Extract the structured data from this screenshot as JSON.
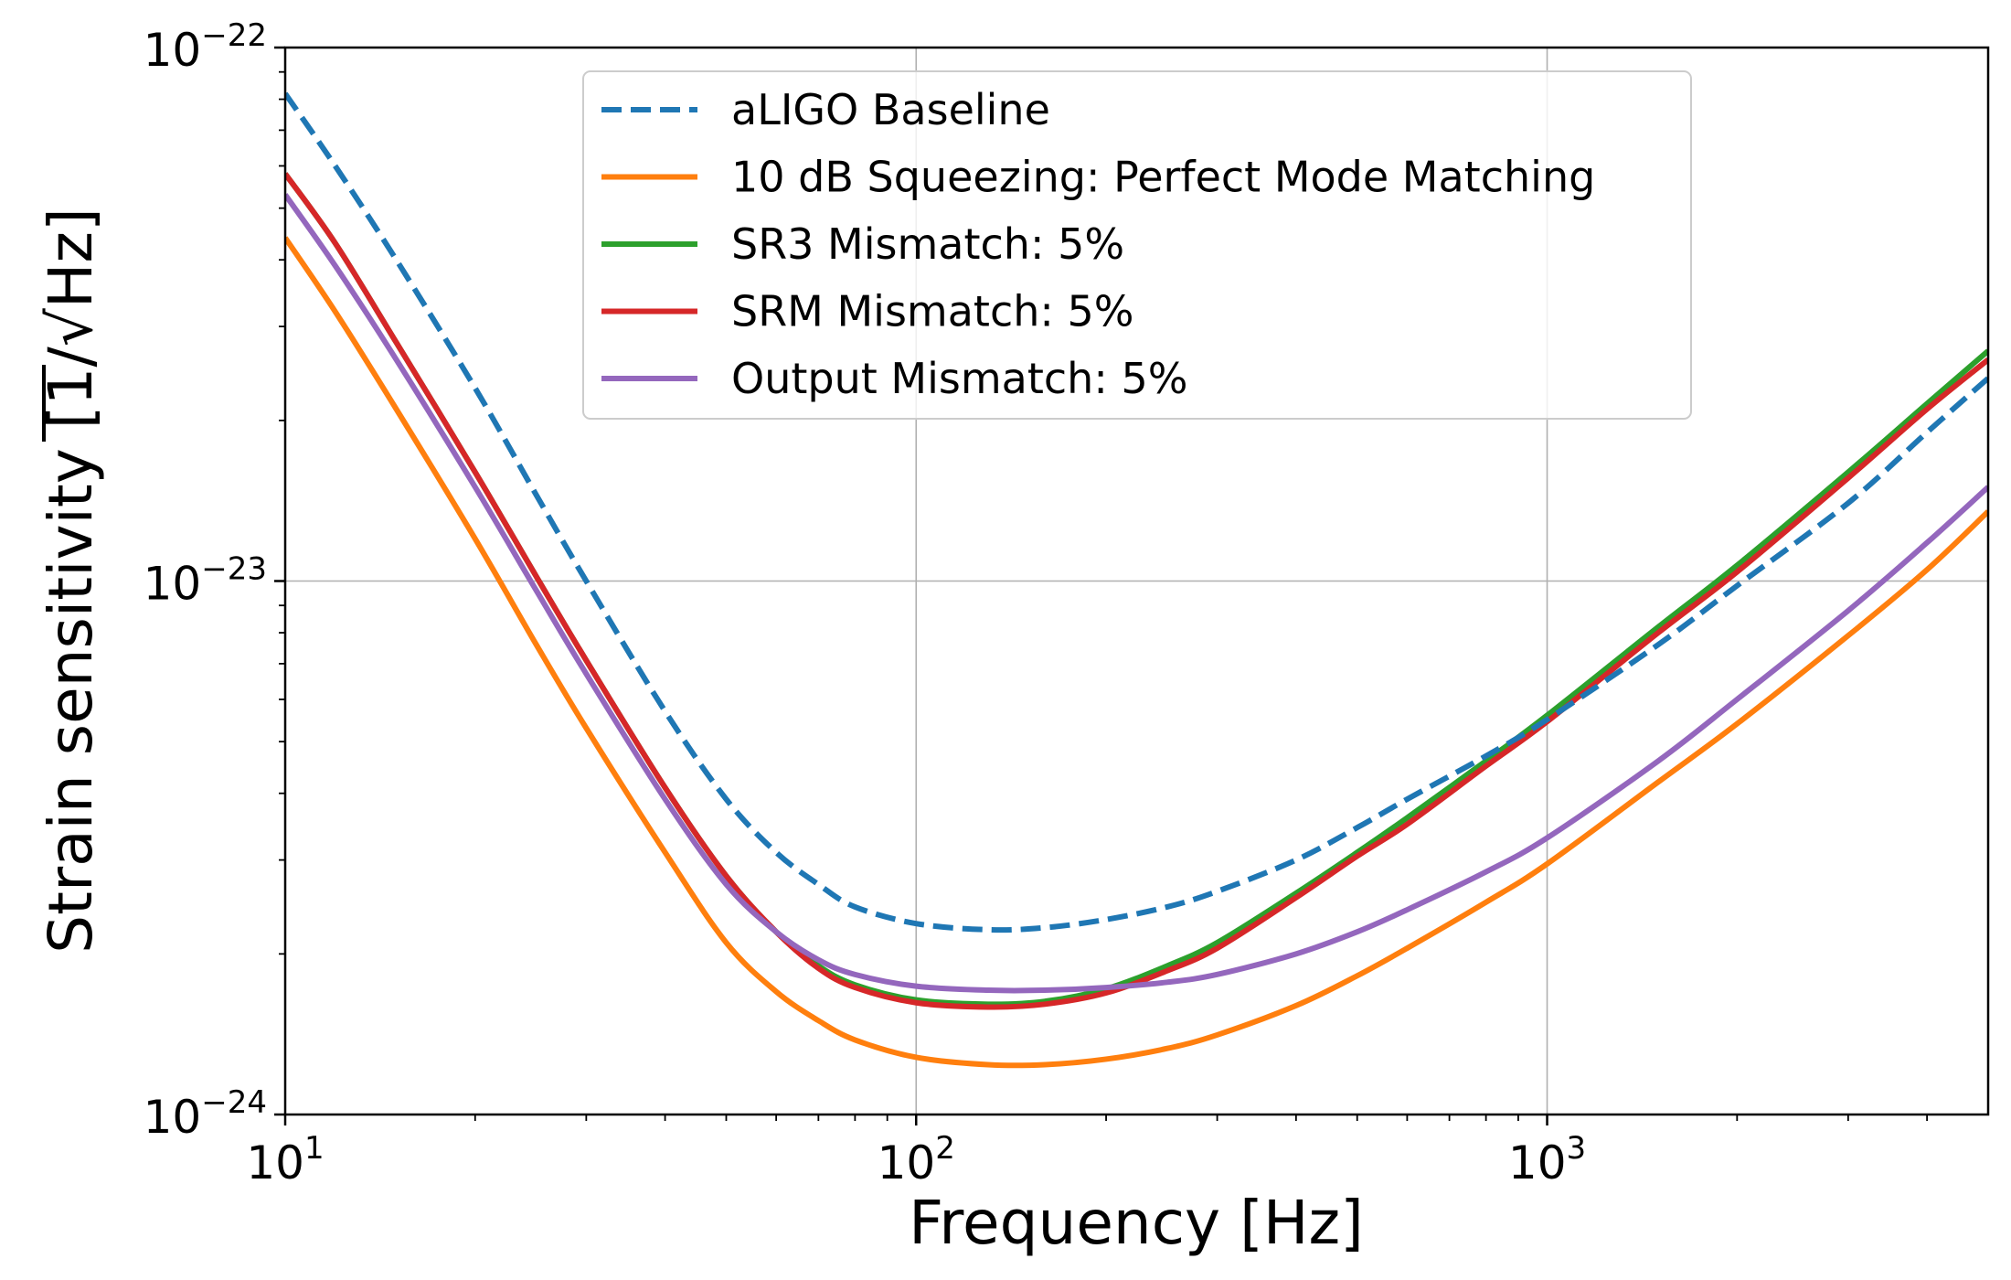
{
  "chart_data": {
    "type": "line",
    "xlabel": "Frequency [Hz]",
    "ylabel": "Strain sensitivity [1/√Hz]",
    "ylabel_parts": {
      "before": "Strain sensitivity [1/",
      "sqrt_sign": "√",
      "radicand": "Hz",
      "after": "]"
    },
    "xscale": "log",
    "yscale": "log",
    "xlim": [
      10,
      5000
    ],
    "ylim": [
      1e-24,
      1e-22
    ],
    "grid": true,
    "legend_position": "upper-center",
    "x_ticks": [
      {
        "value": 10,
        "base": "10",
        "exp": "1"
      },
      {
        "value": 100,
        "base": "10",
        "exp": "2"
      },
      {
        "value": 1000,
        "base": "10",
        "exp": "3"
      }
    ],
    "y_ticks": [
      {
        "value": 1e-24,
        "base": "10",
        "exp": "−24"
      },
      {
        "value": 1e-23,
        "base": "10",
        "exp": "−23"
      },
      {
        "value": 1e-22,
        "base": "10",
        "exp": "−22"
      }
    ],
    "series": [
      {
        "name": "aLIGO Baseline",
        "color": "#1f77b4",
        "dash": "dashed",
        "x": [
          10,
          12,
          15,
          20,
          25,
          30,
          40,
          50,
          60,
          70,
          80,
          100,
          130,
          160,
          200,
          250,
          300,
          400,
          500,
          600,
          800,
          1000,
          1500,
          2000,
          3000,
          4000,
          5000
        ],
        "y": [
          8.2e-23,
          6e-23,
          4e-23,
          2.3e-23,
          1.45e-23,
          1e-23,
          5.7e-24,
          3.9e-24,
          3.1e-24,
          2.7e-24,
          2.45e-24,
          2.28e-24,
          2.22e-24,
          2.24e-24,
          2.32e-24,
          2.45e-24,
          2.62e-24,
          3e-24,
          3.45e-24,
          3.9e-24,
          4.7e-24,
          5.5e-24,
          7.6e-24,
          9.8e-24,
          1.4e-23,
          1.9e-23,
          2.4e-23
        ]
      },
      {
        "name": "10 dB Squeezing: Perfect Mode Matching",
        "color": "#ff7f0e",
        "dash": "solid",
        "x": [
          10,
          12,
          15,
          20,
          25,
          30,
          40,
          50,
          60,
          70,
          80,
          100,
          130,
          160,
          200,
          250,
          300,
          400,
          500,
          600,
          800,
          1000,
          1500,
          2000,
          3000,
          4000,
          5000
        ],
        "y": [
          4.4e-23,
          3.2e-23,
          2.1e-23,
          1.2e-23,
          7.6e-24,
          5.3e-24,
          3.1e-24,
          2.1e-24,
          1.7e-24,
          1.5e-24,
          1.38e-24,
          1.28e-24,
          1.24e-24,
          1.24e-24,
          1.27e-24,
          1.33e-24,
          1.41e-24,
          1.6e-24,
          1.82e-24,
          2.05e-24,
          2.5e-24,
          2.95e-24,
          4.2e-24,
          5.4e-24,
          7.9e-24,
          1.05e-23,
          1.35e-23
        ]
      },
      {
        "name": "SR3 Mismatch: 5%",
        "color": "#2ca02c",
        "dash": "solid",
        "x": [
          10,
          12,
          15,
          20,
          25,
          30,
          40,
          50,
          60,
          70,
          80,
          100,
          130,
          160,
          200,
          250,
          300,
          400,
          500,
          600,
          800,
          1000,
          1500,
          2000,
          3000,
          4000,
          5000
        ],
        "y": [
          5.8e-23,
          4.3e-23,
          2.8e-23,
          1.6e-23,
          1.02e-23,
          7.1e-24,
          4.1e-24,
          2.8e-24,
          2.2e-24,
          1.9e-24,
          1.75e-24,
          1.64e-24,
          1.61e-24,
          1.63e-24,
          1.72e-24,
          1.9e-24,
          2.1e-24,
          2.6e-24,
          3.1e-24,
          3.6e-24,
          4.6e-24,
          5.6e-24,
          8.2e-24,
          1.07e-23,
          1.6e-23,
          2.15e-23,
          2.7e-23
        ]
      },
      {
        "name": "SRM Mismatch: 5%",
        "color": "#d62728",
        "dash": "solid",
        "x": [
          10,
          12,
          15,
          20,
          25,
          30,
          40,
          50,
          60,
          70,
          80,
          100,
          130,
          160,
          200,
          250,
          300,
          400,
          500,
          600,
          800,
          1000,
          1500,
          2000,
          3000,
          4000,
          5000
        ],
        "y": [
          5.8e-23,
          4.3e-23,
          2.8e-23,
          1.6e-23,
          1.02e-23,
          7.1e-24,
          4.1e-24,
          2.8e-24,
          2.2e-24,
          1.88e-24,
          1.73e-24,
          1.62e-24,
          1.59e-24,
          1.61e-24,
          1.69e-24,
          1.86e-24,
          2.05e-24,
          2.55e-24,
          3.05e-24,
          3.5e-24,
          4.5e-24,
          5.45e-24,
          8e-24,
          1.04e-23,
          1.56e-23,
          2.1e-23,
          2.6e-23
        ]
      },
      {
        "name": "Output Mismatch: 5%",
        "color": "#9467bd",
        "dash": "solid",
        "x": [
          10,
          12,
          15,
          20,
          25,
          30,
          40,
          50,
          60,
          70,
          80,
          100,
          130,
          160,
          200,
          250,
          300,
          400,
          500,
          600,
          800,
          1000,
          1500,
          2000,
          3000,
          4000,
          5000
        ],
        "y": [
          5.3e-23,
          3.9e-23,
          2.6e-23,
          1.5e-23,
          9.6e-24,
          6.7e-24,
          3.9e-24,
          2.7e-24,
          2.2e-24,
          1.95e-24,
          1.83e-24,
          1.74e-24,
          1.71e-24,
          1.71e-24,
          1.73e-24,
          1.77e-24,
          1.83e-24,
          2e-24,
          2.2e-24,
          2.42e-24,
          2.85e-24,
          3.3e-24,
          4.6e-24,
          6e-24,
          8.8e-24,
          1.18e-23,
          1.5e-23
        ]
      }
    ]
  }
}
